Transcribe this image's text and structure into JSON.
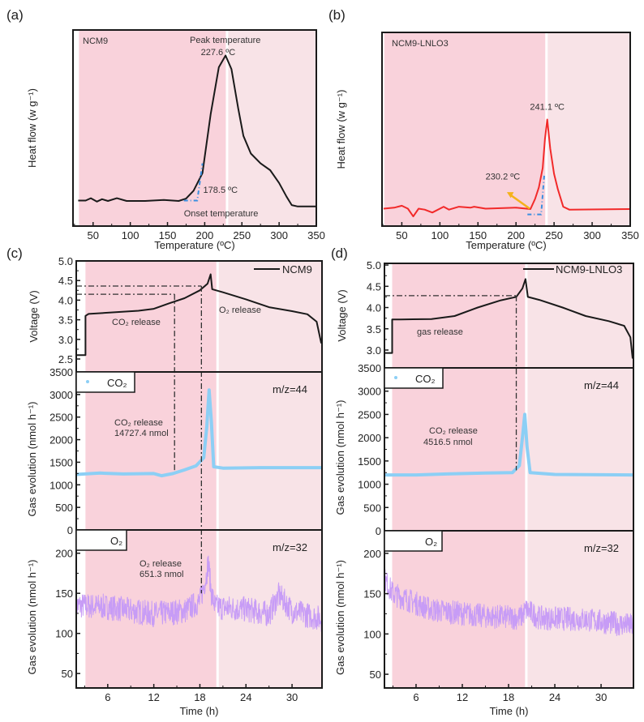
{
  "colors": {
    "pink_dark": "#f9d2db",
    "pink_light": "#f8e3e7",
    "divider": "#ffffff",
    "black": "#1a1a1a",
    "red": "#f22a2a",
    "co2": "#8ccff5",
    "o2": "#c79cf6",
    "onset": "#3b8fe0",
    "arrow": "#f5b21b"
  },
  "chart_data": [
    {
      "panel": "(a)",
      "type": "line",
      "xlabel": "Temperature (ºC)",
      "ylabel": "Heat flow (w g⁻¹)",
      "xlim": [
        23,
        350
      ],
      "ylim": [
        0,
        1
      ],
      "xticks": [
        50,
        100,
        150,
        200,
        250,
        300,
        350
      ],
      "pink_start": 31,
      "divider": 230,
      "sample": "NCM9",
      "peak_label": "Peak temperature",
      "peak_value": "227.6 ºC",
      "onset_value": "178.5 ºC",
      "onset_label": "Onset temperature",
      "series": [
        {
          "color": "black",
          "points": [
            [
              30,
              0.13
            ],
            [
              40,
              0.13
            ],
            [
              47,
              0.142
            ],
            [
              55,
              0.125
            ],
            [
              62,
              0.137
            ],
            [
              70,
              0.128
            ],
            [
              82,
              0.142
            ],
            [
              95,
              0.128
            ],
            [
              120,
              0.128
            ],
            [
              145,
              0.133
            ],
            [
              165,
              0.128
            ],
            [
              175,
              0.14
            ],
            [
              185,
              0.18
            ],
            [
              197,
              0.27
            ],
            [
              208,
              0.57
            ],
            [
              219,
              0.81
            ],
            [
              228,
              0.87
            ],
            [
              236,
              0.8
            ],
            [
              245,
              0.6
            ],
            [
              252,
              0.46
            ],
            [
              262,
              0.37
            ],
            [
              275,
              0.32
            ],
            [
              288,
              0.285
            ],
            [
              300,
              0.22
            ],
            [
              310,
              0.15
            ],
            [
              317,
              0.107
            ],
            [
              325,
              0.1
            ],
            [
              350,
              0.1
            ]
          ]
        }
      ]
    },
    {
      "panel": "(b)",
      "type": "line",
      "xlabel": "Temperature (ºC)",
      "ylabel": "Heat flow (w g⁻¹)",
      "xlim": [
        24,
        350
      ],
      "ylim": [
        0,
        1
      ],
      "xticks": [
        50,
        100,
        150,
        200,
        250,
        300,
        350
      ],
      "pink_start": 27,
      "divider": 240,
      "sample": "NCM9-LNLO3",
      "peak_value": "241.1 ºC",
      "onset_value": "230.2 ºC",
      "series": [
        {
          "color": "red",
          "points": [
            [
              26,
              0.09
            ],
            [
              40,
              0.095
            ],
            [
              50,
              0.105
            ],
            [
              58,
              0.09
            ],
            [
              65,
              0.05
            ],
            [
              72,
              0.09
            ],
            [
              80,
              0.085
            ],
            [
              90,
              0.07
            ],
            [
              105,
              0.1
            ],
            [
              112,
              0.085
            ],
            [
              125,
              0.1
            ],
            [
              140,
              0.095
            ],
            [
              145,
              0.1
            ],
            [
              160,
              0.09
            ],
            [
              200,
              0.095
            ],
            [
              219,
              0.088
            ],
            [
              225,
              0.14
            ],
            [
              230,
              0.2
            ],
            [
              235,
              0.3
            ],
            [
              238,
              0.45
            ],
            [
              241,
              0.55
            ],
            [
              245,
              0.4
            ],
            [
              250,
              0.27
            ],
            [
              255,
              0.19
            ],
            [
              262,
              0.1
            ],
            [
              270,
              0.085
            ],
            [
              350,
              0.088
            ]
          ]
        }
      ]
    },
    {
      "panel": "(c)",
      "type": "line",
      "xlabel": "Time (h)",
      "xlim": [
        1.9,
        33.9
      ],
      "xticks": [
        6,
        12,
        18,
        24,
        30
      ],
      "pink_start": 3.1,
      "divider": 20.3,
      "voltage": {
        "ylabel": "Voltage (V)",
        "ylim": [
          2.17,
          5.0
        ],
        "yticks": [
          2.5,
          3.0,
          3.5,
          4.0,
          4.5,
          5.0
        ],
        "legend": "NCM9",
        "labels": [
          "CO₂ release",
          "O₂ release"
        ],
        "points": [
          [
            1.9,
            2.6
          ],
          [
            3.1,
            2.6
          ],
          [
            3.1,
            3.6
          ],
          [
            3.5,
            3.65
          ],
          [
            6,
            3.68
          ],
          [
            10,
            3.73
          ],
          [
            12,
            3.78
          ],
          [
            14,
            3.92
          ],
          [
            16,
            4.05
          ],
          [
            18,
            4.25
          ],
          [
            19,
            4.42
          ],
          [
            19.4,
            4.66
          ],
          [
            19.6,
            4.28
          ],
          [
            21,
            4.2
          ],
          [
            24,
            4.02
          ],
          [
            27,
            3.82
          ],
          [
            30,
            3.72
          ],
          [
            32,
            3.64
          ],
          [
            33.2,
            3.45
          ],
          [
            33.8,
            2.9
          ]
        ]
      },
      "co2": {
        "ylabel": "Gas evolution (nmol h⁻¹)",
        "ylim": [
          0,
          3500
        ],
        "yticks": [
          0,
          500,
          1000,
          1500,
          2000,
          2500,
          3000,
          3500
        ],
        "legend": "CO₂",
        "mz": "m/z=44",
        "release": "CO₂ release",
        "amount": "14727.4 nmol",
        "points": [
          [
            1.9,
            1230
          ],
          [
            5,
            1260
          ],
          [
            8,
            1240
          ],
          [
            12,
            1250
          ],
          [
            13,
            1200
          ],
          [
            14.5,
            1250
          ],
          [
            16,
            1330
          ],
          [
            17.5,
            1420
          ],
          [
            18.5,
            1600
          ],
          [
            18.9,
            2300
          ],
          [
            19.2,
            3100
          ],
          [
            19.5,
            2400
          ],
          [
            19.8,
            1400
          ],
          [
            21,
            1370
          ],
          [
            26,
            1380
          ],
          [
            33.9,
            1380
          ]
        ]
      },
      "o2": {
        "ylabel": "Gas evolution (nmol h⁻¹)",
        "ylim": [
          32,
          229
        ],
        "yticks": [
          50,
          100,
          150,
          200
        ],
        "legend": "O₂",
        "mz": "m/z=32",
        "release": "O₂ release",
        "amount": "651.3 nmol",
        "noise": 16,
        "points": [
          [
            1.9,
            135
          ],
          [
            6,
            133
          ],
          [
            12,
            124
          ],
          [
            16,
            128
          ],
          [
            18,
            140
          ],
          [
            18.8,
            170
          ],
          [
            19.1,
            188
          ],
          [
            19.5,
            150
          ],
          [
            20,
            133
          ],
          [
            24,
            130
          ],
          [
            27,
            124
          ],
          [
            28.3,
            148
          ],
          [
            30,
            128
          ],
          [
            33.9,
            118
          ]
        ]
      },
      "guides": [
        {
          "t": 14.7,
          "v": 4.15,
          "to": [
            "co2",
            1280
          ]
        },
        {
          "t": 18.2,
          "v": 4.36,
          "to": [
            "o2",
            150
          ]
        }
      ]
    },
    {
      "panel": "(d)",
      "type": "line",
      "xlabel": "Time (h)",
      "xlim": [
        1.9,
        34.2
      ],
      "xticks": [
        6,
        12,
        18,
        24,
        30
      ],
      "pink_start": 2.9,
      "divider": 20.3,
      "voltage": {
        "ylabel": "Voltage (V)",
        "ylim": [
          2.58,
          5.04
        ],
        "yticks": [
          3.0,
          3.5,
          4.0,
          4.5,
          5.0
        ],
        "legend": "NCM9-LNLO3",
        "labels": [
          "gas release"
        ],
        "points": [
          [
            1.9,
            2.93
          ],
          [
            2.9,
            2.93
          ],
          [
            2.9,
            3.72
          ],
          [
            4,
            3.72
          ],
          [
            8,
            3.73
          ],
          [
            11,
            3.8
          ],
          [
            14,
            4.0
          ],
          [
            17,
            4.17
          ],
          [
            19,
            4.25
          ],
          [
            19.8,
            4.45
          ],
          [
            20.2,
            4.67
          ],
          [
            20.5,
            4.25
          ],
          [
            22,
            4.18
          ],
          [
            25,
            4.0
          ],
          [
            28,
            3.8
          ],
          [
            31,
            3.68
          ],
          [
            33,
            3.57
          ],
          [
            33.8,
            3.3
          ],
          [
            34.1,
            2.8
          ]
        ]
      },
      "co2": {
        "ylabel": "Gas evolution (nmol h⁻¹)",
        "ylim": [
          0,
          3500
        ],
        "yticks": [
          0,
          500,
          1000,
          1500,
          2000,
          2500,
          3000,
          3500
        ],
        "legend": "CO₂",
        "mz": "m/z=44",
        "release": "CO₂ release",
        "amount": "4516.5 nmol",
        "points": [
          [
            1.9,
            1200
          ],
          [
            6,
            1200
          ],
          [
            10,
            1220
          ],
          [
            15,
            1240
          ],
          [
            18.5,
            1250
          ],
          [
            19.4,
            1400
          ],
          [
            19.8,
            2000
          ],
          [
            20.1,
            2500
          ],
          [
            20.4,
            1800
          ],
          [
            20.8,
            1250
          ],
          [
            24,
            1210
          ],
          [
            34.2,
            1200
          ]
        ]
      },
      "o2": {
        "ylabel": "Gas evolution (nmol h⁻¹)",
        "ylim": [
          33,
          228
        ],
        "yticks": [
          50,
          100,
          150,
          200
        ],
        "legend": "O₂",
        "mz": "m/z=32",
        "noise": 15,
        "points": [
          [
            1.9,
            168
          ],
          [
            3,
            150
          ],
          [
            8,
            130
          ],
          [
            15,
            122
          ],
          [
            19.5,
            120
          ],
          [
            20.3,
            130
          ],
          [
            22,
            120
          ],
          [
            28,
            118
          ],
          [
            34.2,
            110
          ]
        ]
      },
      "guides": [
        {
          "t": 19.0,
          "v": 4.28,
          "to": [
            "co2",
            1300
          ]
        }
      ]
    }
  ]
}
